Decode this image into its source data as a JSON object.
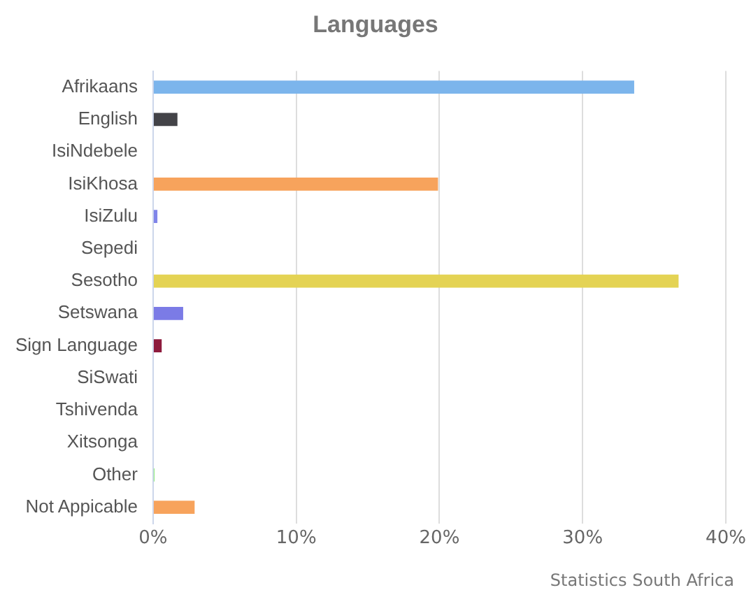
{
  "chart_data": {
    "type": "bar",
    "orientation": "horizontal",
    "title": "Languages",
    "categories": [
      "Afrikaans",
      "English",
      "IsiNdebele",
      "IsiKhosa",
      "IsiZulu",
      "Sepedi",
      "Sesotho",
      "Setswana",
      "Sign Language",
      "SiSwati",
      "Tshivenda",
      "Xitsonga",
      "Other",
      "Not Appicable"
    ],
    "values": [
      33.6,
      1.7,
      0,
      19.9,
      0.3,
      0,
      36.7,
      2.1,
      0.6,
      0,
      0,
      0,
      0.1,
      2.9
    ],
    "colors": [
      "#7cb5ec",
      "#434348",
      "#90ed7d",
      "#f7a35c",
      "#8085e9",
      "#f15c80",
      "#e4d354",
      "#7b7be6",
      "#8d1b3d",
      "#91e8e1",
      "#7cb5ec",
      "#434348",
      "#90ed7d",
      "#f7a35c"
    ],
    "xlim": [
      0,
      40
    ],
    "xticks": [
      {
        "value": 0,
        "label": "0%"
      },
      {
        "value": 10,
        "label": "10%"
      },
      {
        "value": 20,
        "label": "20%"
      },
      {
        "value": 30,
        "label": "30%"
      },
      {
        "value": 40,
        "label": "40%"
      }
    ],
    "grid": "x",
    "legend": false,
    "annotations": [
      "Statistics South Africa"
    ]
  }
}
